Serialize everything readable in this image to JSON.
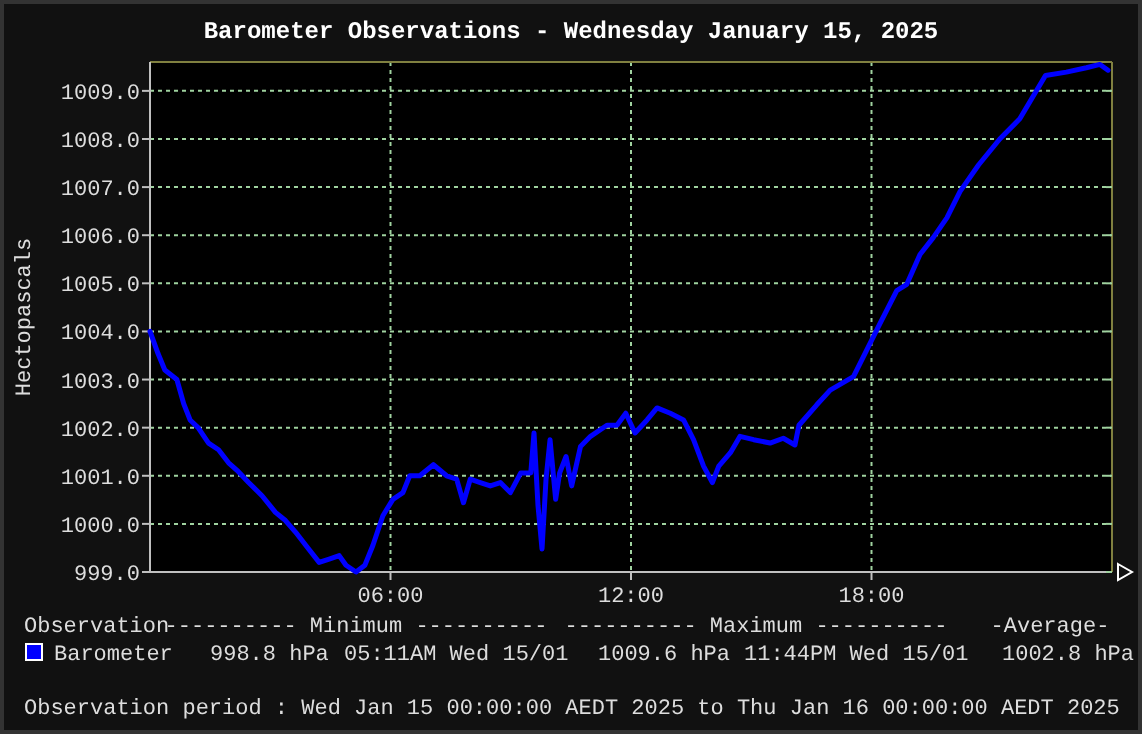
{
  "chart_data": {
    "type": "line",
    "title": "Barometer Observations - Wednesday January 15, 2025",
    "ylabel": "Hectopascals",
    "x": [
      0,
      0.2,
      0.37,
      0.67,
      0.84,
      1.0,
      1.2,
      1.46,
      1.71,
      1.96,
      2.2,
      2.46,
      2.8,
      3.13,
      3.38,
      3.63,
      3.89,
      4.22,
      4.47,
      4.72,
      4.89,
      5.14,
      5.36,
      5.56,
      5.81,
      6.06,
      6.31,
      6.48,
      6.73,
      7.07,
      7.4,
      7.65,
      7.82,
      7.99,
      8.24,
      8.49,
      8.74,
      8.99,
      9.25,
      9.5,
      9.58,
      9.68,
      9.78,
      9.88,
      9.98,
      10.12,
      10.22,
      10.38,
      10.52,
      10.74,
      10.99,
      11.4,
      11.65,
      11.87,
      12.1,
      12.4,
      12.65,
      12.98,
      13.31,
      13.56,
      13.81,
      14.03,
      14.19,
      14.48,
      14.72,
      15.06,
      15.47,
      15.8,
      16.09,
      16.19,
      16.63,
      16.97,
      17.55,
      17.88,
      18.21,
      18.63,
      18.88,
      19.21,
      19.54,
      19.88,
      20.21,
      20.67,
      21.2,
      21.7,
      22.04,
      22.34,
      22.86,
      23.36,
      23.7,
      23.9
    ],
    "series": [
      {
        "name": "Barometer",
        "color": "#0000ff",
        "values": [
          1004.0,
          1003.54,
          1003.2,
          1003.0,
          1002.5,
          1002.16,
          1002.0,
          1001.68,
          1001.54,
          1001.27,
          1001.09,
          1000.86,
          1000.58,
          1000.24,
          1000.07,
          999.83,
          999.55,
          999.2,
          999.27,
          999.34,
          999.14,
          999.0,
          999.14,
          999.55,
          1000.17,
          1000.51,
          1000.65,
          1001.0,
          1001.0,
          1001.23,
          1001.0,
          1000.93,
          1000.44,
          1000.93,
          1000.86,
          1000.79,
          1000.86,
          1000.65,
          1001.06,
          1001.06,
          1001.89,
          1000.38,
          999.48,
          1000.93,
          1001.75,
          1000.51,
          1001.06,
          1001.4,
          1000.79,
          1001.61,
          1001.82,
          1002.05,
          1002.05,
          1002.3,
          1001.89,
          1002.16,
          1002.41,
          1002.3,
          1002.16,
          1001.75,
          1001.2,
          1000.86,
          1001.2,
          1001.48,
          1001.82,
          1001.75,
          1001.68,
          1001.78,
          1001.64,
          1002.05,
          1002.47,
          1002.78,
          1003.06,
          1003.61,
          1004.16,
          1004.85,
          1004.98,
          1005.6,
          1005.95,
          1006.36,
          1006.91,
          1007.46,
          1008.0,
          1008.42,
          1008.9,
          1009.32,
          1009.39,
          1009.48,
          1009.55,
          1009.43
        ]
      }
    ],
    "xlim": [
      0,
      24
    ],
    "xticks": [
      {
        "value": 6,
        "label": "06:00"
      },
      {
        "value": 12,
        "label": "12:00"
      },
      {
        "value": 18,
        "label": "18:00"
      }
    ],
    "ylim": [
      999,
      1009.6
    ],
    "yticks": [
      {
        "value": 999,
        "label": "999.0"
      },
      {
        "value": 1000,
        "label": "1000.0"
      },
      {
        "value": 1001,
        "label": "1001.0"
      },
      {
        "value": 1002,
        "label": "1002.0"
      },
      {
        "value": 1003,
        "label": "1003.0"
      },
      {
        "value": 1004,
        "label": "1004.0"
      },
      {
        "value": 1005,
        "label": "1005.0"
      },
      {
        "value": 1006,
        "label": "1006.0"
      },
      {
        "value": 1007,
        "label": "1007.0"
      },
      {
        "value": 1008,
        "label": "1008.0"
      },
      {
        "value": 1009,
        "label": "1009.0"
      }
    ],
    "grid": true,
    "legend": "bottom left",
    "marker": "none",
    "line_style": "solid",
    "annotations": [
      "Observation",
      "---------- Minimum ----------",
      "---------- Maximum ----------",
      "-Average-",
      "998.8 hPa",
      "05:11AM Wed 15/01",
      "1009.6 hPa",
      "11:44PM Wed 15/01",
      "1002.8 hPa",
      "Observation period : Wed Jan 15 00:00:00 AEDT 2025 to Thu Jan 16 00:00:00 AEDT 2025"
    ]
  }
}
